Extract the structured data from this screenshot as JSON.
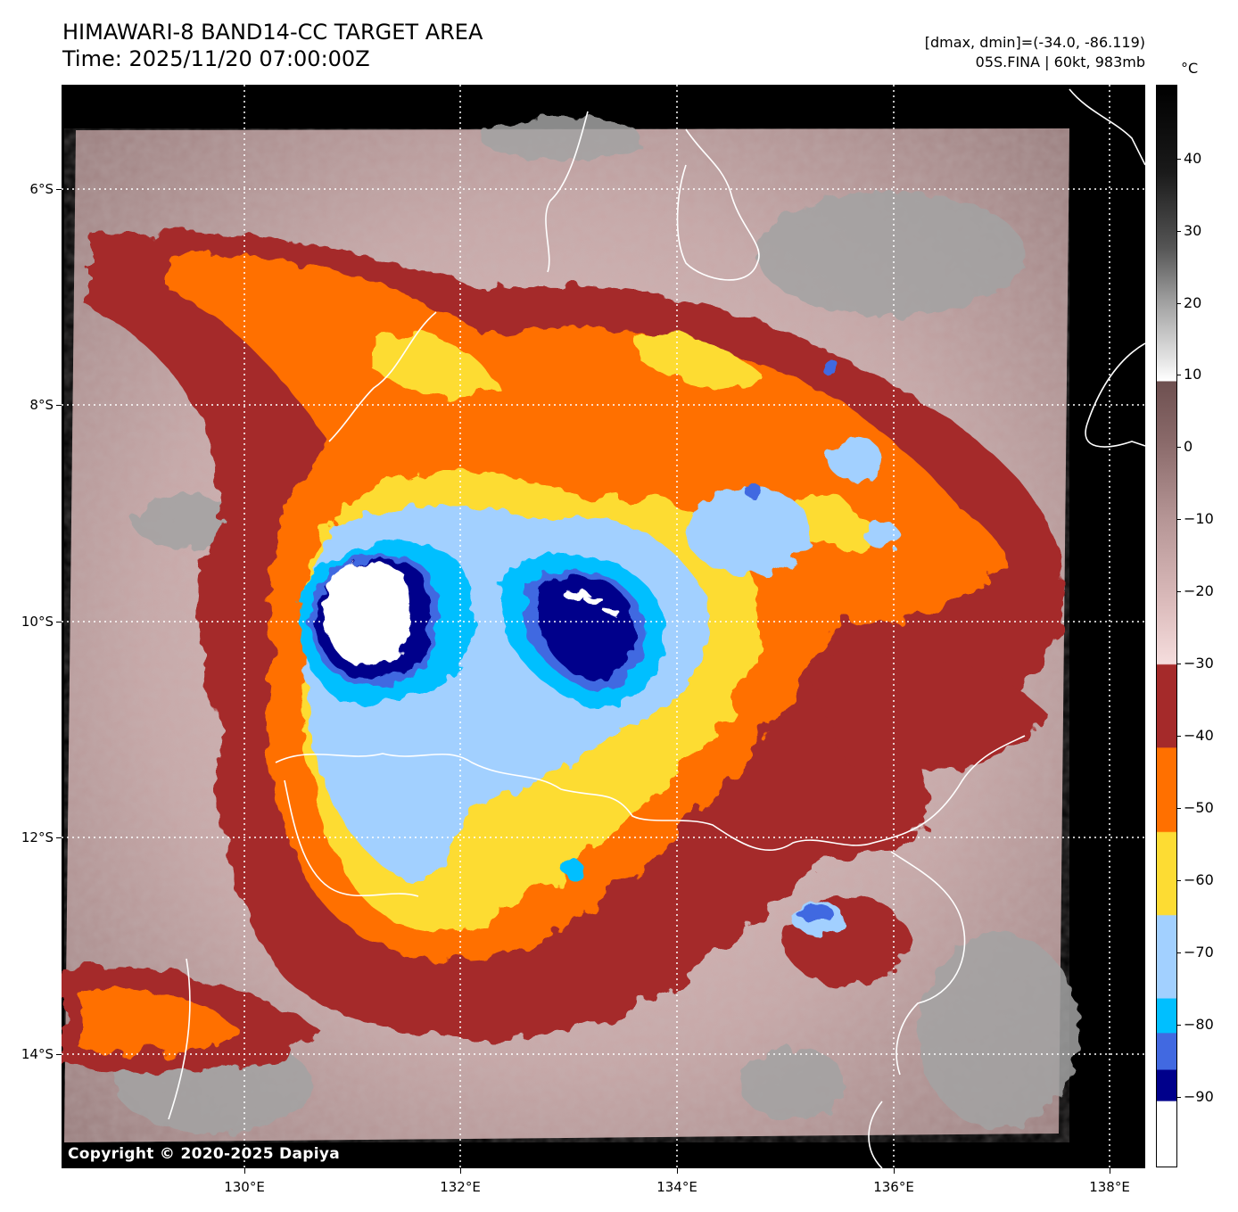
{
  "title": {
    "line1": "HIMAWARI-8 BAND14-CC TARGET AREA",
    "line2": "Time: 2025/11/20 07:00:00Z"
  },
  "info": {
    "line1": "[dmax, dmin]=(-34.0, -86.119)",
    "line2": "05S.FINA | 60kt, 983mb"
  },
  "axes": {
    "lat_labels": [
      "6°S",
      "8°S",
      "10°S",
      "12°S",
      "14°S"
    ],
    "lon_labels": [
      "130°E",
      "132°E",
      "134°E",
      "136°E",
      "138°E"
    ],
    "lat_range": [
      -14.9,
      -5.05
    ],
    "lon_range": [
      128.15,
      138.35
    ],
    "grid": "dotted white"
  },
  "colorbar": {
    "unit": "°C",
    "tick_labels": [
      "40",
      "30",
      "20",
      "10",
      "0",
      "−10",
      "−20",
      "−30",
      "−40",
      "−50",
      "−60",
      "−70",
      "−80",
      "−90"
    ],
    "tick_values": [
      40,
      30,
      20,
      10,
      0,
      -10,
      -20,
      -30,
      -40,
      -50,
      -60,
      -70,
      -80,
      -90
    ],
    "range": [
      -100,
      49
    ],
    "palette": {
      "warm_gray_top": "#000000",
      "white_band": "#ffffff",
      "brown_mauve": "#7a5a5a",
      "pink": "#f2d3d3",
      "dark_red": "#a52a2a",
      "orange": "#ff7000",
      "yellow": "#fddc33",
      "light_blue": "#a2d0ff",
      "sky_blue": "#00bfff",
      "royal_blue": "#4169e1",
      "navy": "#00008b",
      "coldest": "#ffffff"
    }
  },
  "storm": {
    "name": "05S.FINA",
    "intensity": "60kt, 983mb"
  },
  "copyright": "Copyright © 2020-2025 Dapiya"
}
